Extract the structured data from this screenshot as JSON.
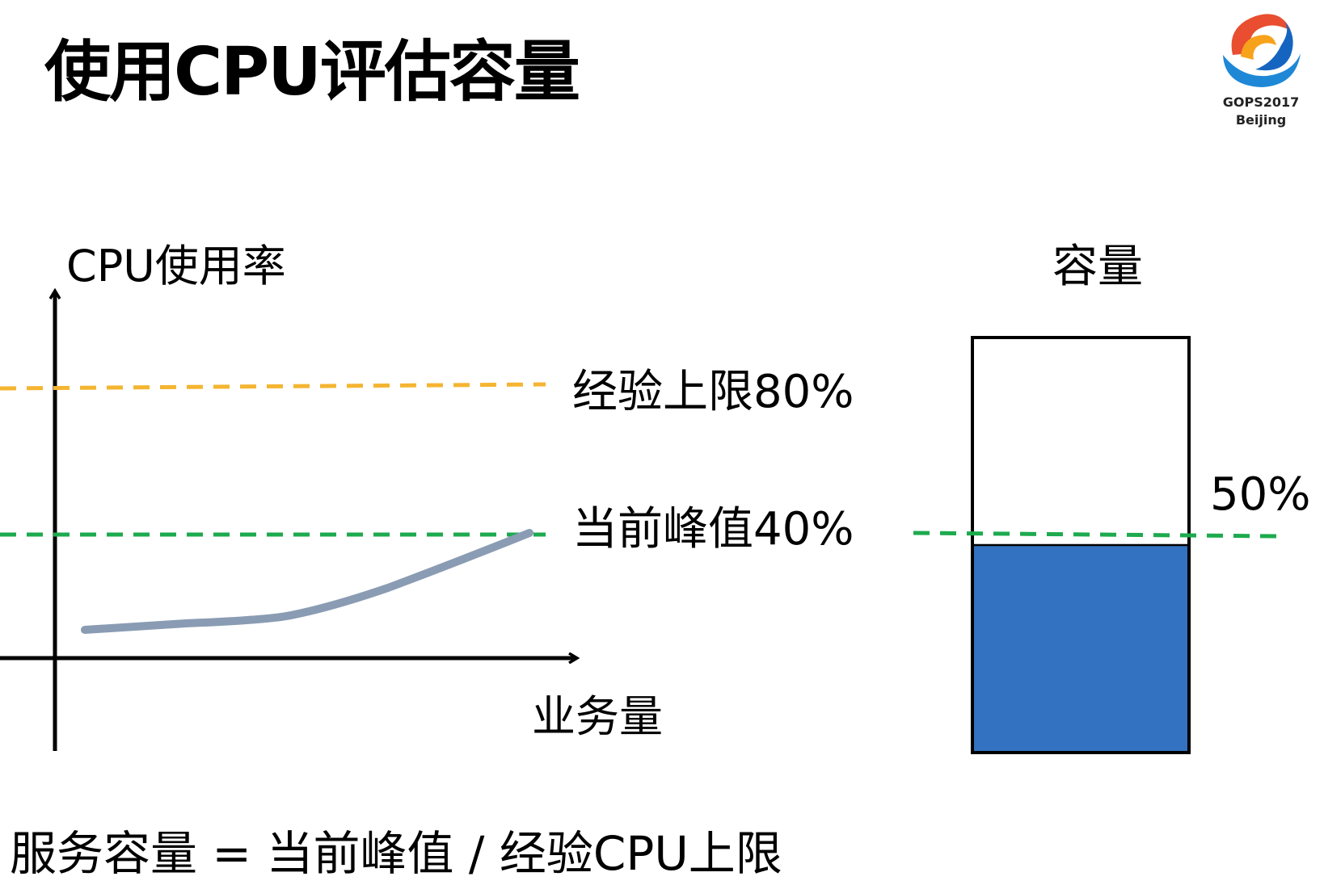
{
  "slide": {
    "title": "使用CPU评估容量",
    "logo": {
      "line1": "GOPS2017",
      "line2": "Beijing"
    }
  },
  "diagram": {
    "y_axis_label": "CPU使用率",
    "x_axis_label": "业务量",
    "upper_limit_label": "经验上限80%",
    "current_peak_label": "当前峰值40%",
    "capacity_title": "容量",
    "capacity_percent_label": "50%",
    "capacity_fill_fraction": 0.5,
    "colors": {
      "upper_limit_line": "#F4B531",
      "current_peak_line": "#1DAA4E",
      "usage_curve": "#8A9CB3",
      "capacity_fill": "#3372C0",
      "axis": "#000000"
    }
  },
  "formula": "服务容量 = 当前峰值 / 经验CPU上限"
}
